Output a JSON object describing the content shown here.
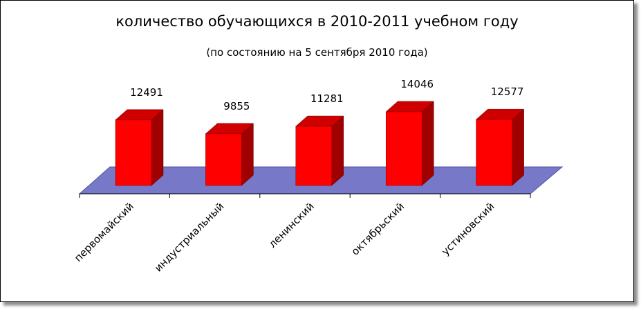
{
  "chart_data": {
    "type": "bar",
    "title": "количество обучающихся в 2010-2011 учебном году",
    "subtitle": "(по состоянию на 5 сентября 2010 года)",
    "categories": [
      "первомайский",
      "индустриальный",
      "ленинский",
      "октябрьский",
      "устиновский"
    ],
    "values": [
      12491,
      9855,
      11281,
      14046,
      12577
    ],
    "ylim": [
      0,
      16000
    ],
    "grid": false,
    "legend": "none",
    "style": "3d-columns"
  },
  "colors": {
    "bar_front": "#ff0000",
    "bar_side": "#a00000",
    "bar_top": "#d00000",
    "floor": "#7878c8"
  }
}
